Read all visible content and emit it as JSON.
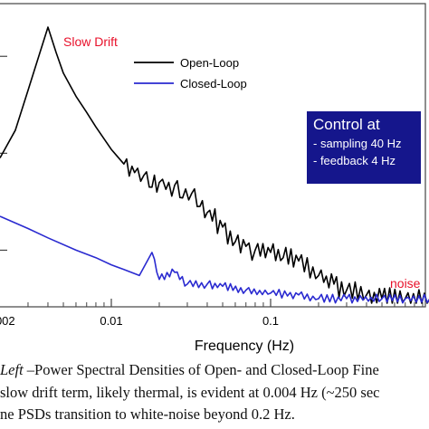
{
  "chart_data": {
    "type": "line",
    "xscale": "log",
    "yscale": "log",
    "xlabel": "Frequency (Hz)",
    "x_ticks": [
      "0.01",
      "0.1"
    ],
    "x_tick_partial": ".002",
    "series": [
      {
        "name": "Open-Loop",
        "color": "#000000",
        "x": [
          0.002,
          0.0025,
          0.003,
          0.0035,
          0.004,
          0.0045,
          0.005,
          0.006,
          0.007,
          0.008,
          0.01,
          0.012,
          0.014,
          0.016,
          0.018,
          0.02,
          0.022,
          0.025,
          0.028,
          0.032,
          0.036,
          0.04,
          0.05,
          0.06,
          0.07,
          0.08,
          0.1,
          0.12,
          0.15,
          0.2,
          0.25,
          0.3,
          0.4,
          0.5,
          0.7,
          1.0,
          1.3
        ],
        "y": [
          0.008,
          0.03,
          0.2,
          1.0,
          4.0,
          1.2,
          0.45,
          0.15,
          0.07,
          0.035,
          0.012,
          0.006,
          0.004,
          0.0035,
          0.002,
          0.0025,
          0.0018,
          0.0022,
          0.0012,
          0.0015,
          0.0008,
          0.0006,
          0.0003,
          0.00015,
          0.00012,
          0.0001,
          9e-05,
          7e-05,
          6e-05,
          3e-05,
          2e-05,
          1.5e-05,
          1.2e-05,
          1e-05,
          1e-05,
          1e-05,
          1e-05
        ]
      },
      {
        "name": "Closed-Loop",
        "color": "#2a2ad0",
        "x": [
          0.002,
          0.003,
          0.004,
          0.006,
          0.008,
          0.01,
          0.012,
          0.015,
          0.018,
          0.02,
          0.025,
          0.03,
          0.04,
          0.05,
          0.07,
          0.1,
          0.15,
          0.2,
          0.3,
          0.5,
          0.7,
          1.0,
          1.3
        ],
        "y": [
          0.0005,
          0.00028,
          0.00018,
          0.0001,
          7e-05,
          5e-05,
          4e-05,
          3e-05,
          9e-05,
          2.5e-05,
          3.5e-05,
          2e-05,
          2e-05,
          1.8e-05,
          1.5e-05,
          1.3e-05,
          1.2e-05,
          1e-05,
          1e-05,
          1e-05,
          1e-05,
          1e-05,
          1e-05
        ]
      }
    ],
    "annotations": {
      "slow_drift": "Slow Drift",
      "noise": "noise",
      "slow_drift_color": "#e8102a",
      "noise_color": "#e8102a"
    },
    "control_box": {
      "title": "Control at",
      "items": [
        "- sampling 40 Hz",
        "- feedback 4 Hz"
      ],
      "background": "#15168c"
    }
  },
  "caption": {
    "line1_italic": "Left",
    "line1_rest": " –Power Spectral Densities of Open- and Closed-Loop Fine",
    "line2": "slow drift term, likely thermal, is evident at 0.004 Hz (~250 sec",
    "line3": "ne PSDs transition to white-noise beyond 0.2 Hz."
  }
}
